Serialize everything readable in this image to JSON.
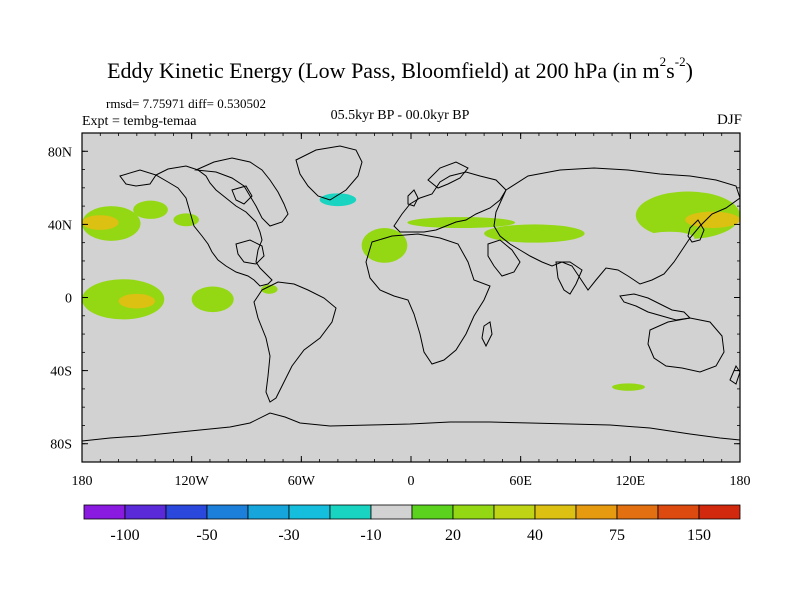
{
  "title": {
    "main": "Eddy Kinetic Energy (Low Pass, Bloomfield) at 200 hPa (in m",
    "sup1": "2",
    "mid": "s",
    "sup2": "-2",
    "end": ")"
  },
  "stats": "rmsd= 7.75971 diff= 0.530502",
  "expt": "Expt = tembg-temaa",
  "period": "05.5kyr BP - 00.0kyr BP",
  "season": "DJF",
  "chart_data": {
    "type": "heatmap",
    "title": "Eddy Kinetic Energy (Low Pass, Bloomfield) at 200 hPa (in m2s-2)",
    "subtitle": "05.5kyr BP - 00.0kyr BP",
    "xlabel": "",
    "ylabel": "",
    "xlim": [
      -180,
      180
    ],
    "ylim": [
      -90,
      90
    ],
    "x_ticks": [
      {
        "value": -180,
        "label": "180"
      },
      {
        "value": -120,
        "label": "120W"
      },
      {
        "value": -60,
        "label": "60W"
      },
      {
        "value": 0,
        "label": "0"
      },
      {
        "value": 60,
        "label": "60E"
      },
      {
        "value": 120,
        "label": "120E"
      },
      {
        "value": 180,
        "label": "180"
      }
    ],
    "y_ticks": [
      {
        "value": 80,
        "label": "80N"
      },
      {
        "value": 40,
        "label": "40N"
      },
      {
        "value": 0,
        "label": "0"
      },
      {
        "value": -40,
        "label": "40S"
      },
      {
        "value": -80,
        "label": "80S"
      }
    ],
    "colorbar": {
      "labels": [
        {
          "boundary": 1,
          "text": "-100"
        },
        {
          "boundary": 3,
          "text": "-50"
        },
        {
          "boundary": 5,
          "text": "-30"
        },
        {
          "boundary": 7,
          "text": "-10"
        },
        {
          "boundary": 9,
          "text": "20"
        },
        {
          "boundary": 11,
          "text": "40"
        },
        {
          "boundary": 13,
          "text": "75"
        },
        {
          "boundary": 15,
          "text": "150"
        }
      ],
      "colors": [
        "#8a1ae0",
        "#5a2ad8",
        "#2a48dc",
        "#1c80da",
        "#16a6dc",
        "#14bedc",
        "#18d4c0",
        "#d2d2d2",
        "#5ad21e",
        "#94d814",
        "#bed414",
        "#dcc012",
        "#e69a10",
        "#e27010",
        "#dc4a10",
        "#d2280e"
      ]
    },
    "regions": [
      {
        "name": "n-pacific-east",
        "class": 9,
        "lon": [
          -180,
          -148
        ],
        "lat": [
          31,
          50
        ]
      },
      {
        "name": "n-pacific-east-core",
        "class": 11,
        "lon": [
          -180,
          -160
        ],
        "lat": [
          37,
          45
        ]
      },
      {
        "name": "alaska-green",
        "class": 9,
        "lon": [
          -152,
          -133
        ],
        "lat": [
          43,
          53
        ]
      },
      {
        "name": "ne-pacific-green",
        "class": 9,
        "lon": [
          -130,
          -116
        ],
        "lat": [
          39,
          46
        ]
      },
      {
        "name": "ne-pacific-teal",
        "class": 7,
        "lon": [
          -148,
          -97
        ],
        "lat": [
          22,
          33
        ]
      },
      {
        "name": "pacific-teal-band",
        "class": 7,
        "lon": [
          -115,
          -62
        ],
        "lat": [
          25,
          34
        ]
      },
      {
        "name": "central-pacific-teal",
        "class": 7,
        "lon": [
          -172,
          -148
        ],
        "lat": [
          11,
          25
        ]
      },
      {
        "name": "eq-pacific-green",
        "class": 9,
        "lon": [
          -180,
          -135
        ],
        "lat": [
          -12,
          10
        ]
      },
      {
        "name": "eq-pacific-core",
        "class": 11,
        "lon": [
          -160,
          -140
        ],
        "lat": [
          -6,
          2
        ]
      },
      {
        "name": "e-pacific-green",
        "class": 9,
        "lon": [
          -120,
          -97
        ],
        "lat": [
          -8,
          6
        ]
      },
      {
        "name": "e-pacific-teal",
        "class": 7,
        "lon": [
          -150,
          -110
        ],
        "lat": [
          -25,
          -10
        ]
      },
      {
        "name": "e-pacific-teal-2",
        "class": 7,
        "lon": [
          -95,
          -76
        ],
        "lat": [
          -25,
          -20
        ]
      },
      {
        "name": "colombia-green",
        "class": 9,
        "lon": [
          -82,
          -73
        ],
        "lat": [
          2,
          7
        ]
      },
      {
        "name": "greenland-teal",
        "class": 7,
        "lon": [
          -60,
          5
        ],
        "lat": [
          50,
          77
        ]
      },
      {
        "name": "greenland-core",
        "class": 6,
        "lon": [
          -50,
          -30
        ],
        "lat": [
          50,
          57
        ]
      },
      {
        "name": "n-atlantic-teal",
        "class": 7,
        "lon": [
          -50,
          -20
        ],
        "lat": [
          32,
          40
        ]
      },
      {
        "name": "mid-atlantic-green",
        "class": 9,
        "lon": [
          -27,
          -2
        ],
        "lat": [
          19,
          38
        ]
      },
      {
        "name": "s-atlantic-teal",
        "class": 7,
        "lon": [
          -55,
          25
        ],
        "lat": [
          -34,
          -26
        ]
      },
      {
        "name": "mediterranean-green",
        "class": 9,
        "lon": [
          -2,
          57
        ],
        "lat": [
          38,
          44
        ]
      },
      {
        "name": "w-asia-green",
        "class": 9,
        "lon": [
          40,
          95
        ],
        "lat": [
          30,
          40
        ]
      },
      {
        "name": "arabia-teal",
        "class": 7,
        "lon": [
          50,
          88
        ],
        "lat": [
          15,
          28
        ]
      },
      {
        "name": "siberia-teal",
        "class": 7,
        "lon": [
          40,
          98
        ],
        "lat": [
          63,
          72
        ]
      },
      {
        "name": "nw-pacific-green",
        "class": 9,
        "lon": [
          123,
          180
        ],
        "lat": [
          32,
          58
        ]
      },
      {
        "name": "nw-pacific-core",
        "class": 11,
        "lon": [
          150,
          180
        ],
        "lat": [
          38,
          47
        ]
      },
      {
        "name": "japan-teal",
        "class": 7,
        "lon": [
          128,
          155
        ],
        "lat": [
          29,
          36
        ]
      },
      {
        "name": "s-indian-green",
        "class": 9,
        "lon": [
          110,
          128
        ],
        "lat": [
          -51,
          -47
        ]
      }
    ]
  }
}
